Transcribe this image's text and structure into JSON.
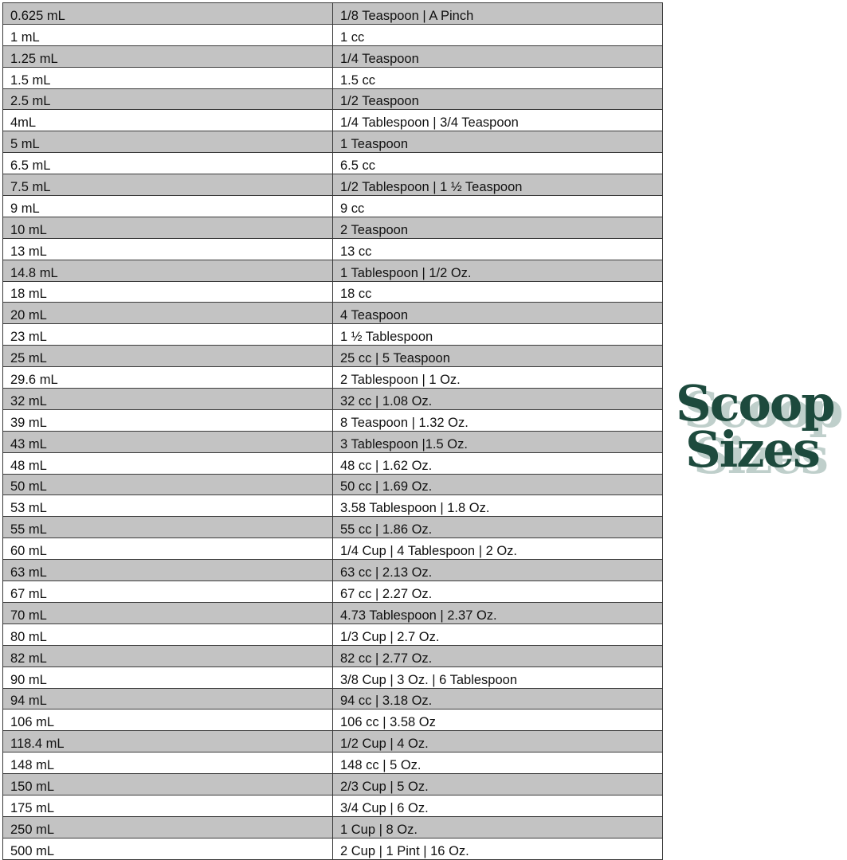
{
  "logo": {
    "line1": "Scoop",
    "line2": "Sizes",
    "color": "#1d4a3d",
    "shadow_color": "#bfcfcb"
  },
  "table": {
    "stripe_color": "#c3c3c3",
    "rows": [
      [
        "0.625 mL",
        "1/8 Teaspoon | A Pinch"
      ],
      [
        "1 mL",
        "1 cc"
      ],
      [
        "1.25 mL",
        "1/4 Teaspoon"
      ],
      [
        "1.5 mL",
        "1.5 cc"
      ],
      [
        "2.5 mL",
        "1/2 Teaspoon"
      ],
      [
        "4mL",
        "1/4 Tablespoon | 3/4 Teaspoon"
      ],
      [
        "5 mL",
        "1 Teaspoon"
      ],
      [
        "6.5 mL",
        "6.5 cc"
      ],
      [
        "7.5 mL",
        "1/2 Tablespoon | 1 ½ Teaspoon"
      ],
      [
        "9 mL",
        "9 cc"
      ],
      [
        "10 mL",
        "2 Teaspoon"
      ],
      [
        "13 mL",
        "13 cc"
      ],
      [
        "14.8 mL",
        "1 Tablespoon | 1/2 Oz."
      ],
      [
        "18 mL",
        "18 cc"
      ],
      [
        "20 mL",
        "4 Teaspoon"
      ],
      [
        "23 mL",
        "1 ½ Tablespoon"
      ],
      [
        "25 mL",
        "25 cc | 5 Teaspoon"
      ],
      [
        "29.6 mL",
        "2 Tablespoon | 1 Oz."
      ],
      [
        "32 mL",
        "32 cc | 1.08 Oz."
      ],
      [
        "39 mL",
        "8 Teaspoon | 1.32 Oz."
      ],
      [
        "43 mL",
        "3 Tablespoon |1.5 Oz."
      ],
      [
        "48 mL",
        "48 cc | 1.62 Oz."
      ],
      [
        "50 mL",
        "50 cc | 1.69 Oz."
      ],
      [
        "53 mL",
        "3.58 Tablespoon | 1.8 Oz."
      ],
      [
        "55 mL",
        "55 cc | 1.86 Oz."
      ],
      [
        "60 mL",
        "1/4 Cup | 4 Tablespoon | 2 Oz."
      ],
      [
        "63 mL",
        "63 cc | 2.13 Oz."
      ],
      [
        "67 mL",
        "67 cc | 2.27 Oz."
      ],
      [
        "70 mL",
        "4.73 Tablespoon | 2.37 Oz."
      ],
      [
        "80 mL",
        "1/3 Cup | 2.7 Oz."
      ],
      [
        "82 mL",
        "82 cc | 2.77 Oz."
      ],
      [
        "90 mL",
        "3/8 Cup | 3 Oz. | 6 Tablespoon"
      ],
      [
        "94 mL",
        "94 cc | 3.18 Oz."
      ],
      [
        "106 mL",
        "106 cc | 3.58 Oz"
      ],
      [
        "118.4 mL",
        "1/2 Cup | 4 Oz."
      ],
      [
        "148 mL",
        "148 cc | 5 Oz."
      ],
      [
        "150 mL",
        "2/3 Cup | 5 Oz."
      ],
      [
        "175 mL",
        "3/4 Cup | 6 Oz."
      ],
      [
        "250 mL",
        "1 Cup | 8 Oz."
      ],
      [
        "500 mL",
        "2 Cup | 1 Pint | 16 Oz."
      ]
    ]
  }
}
